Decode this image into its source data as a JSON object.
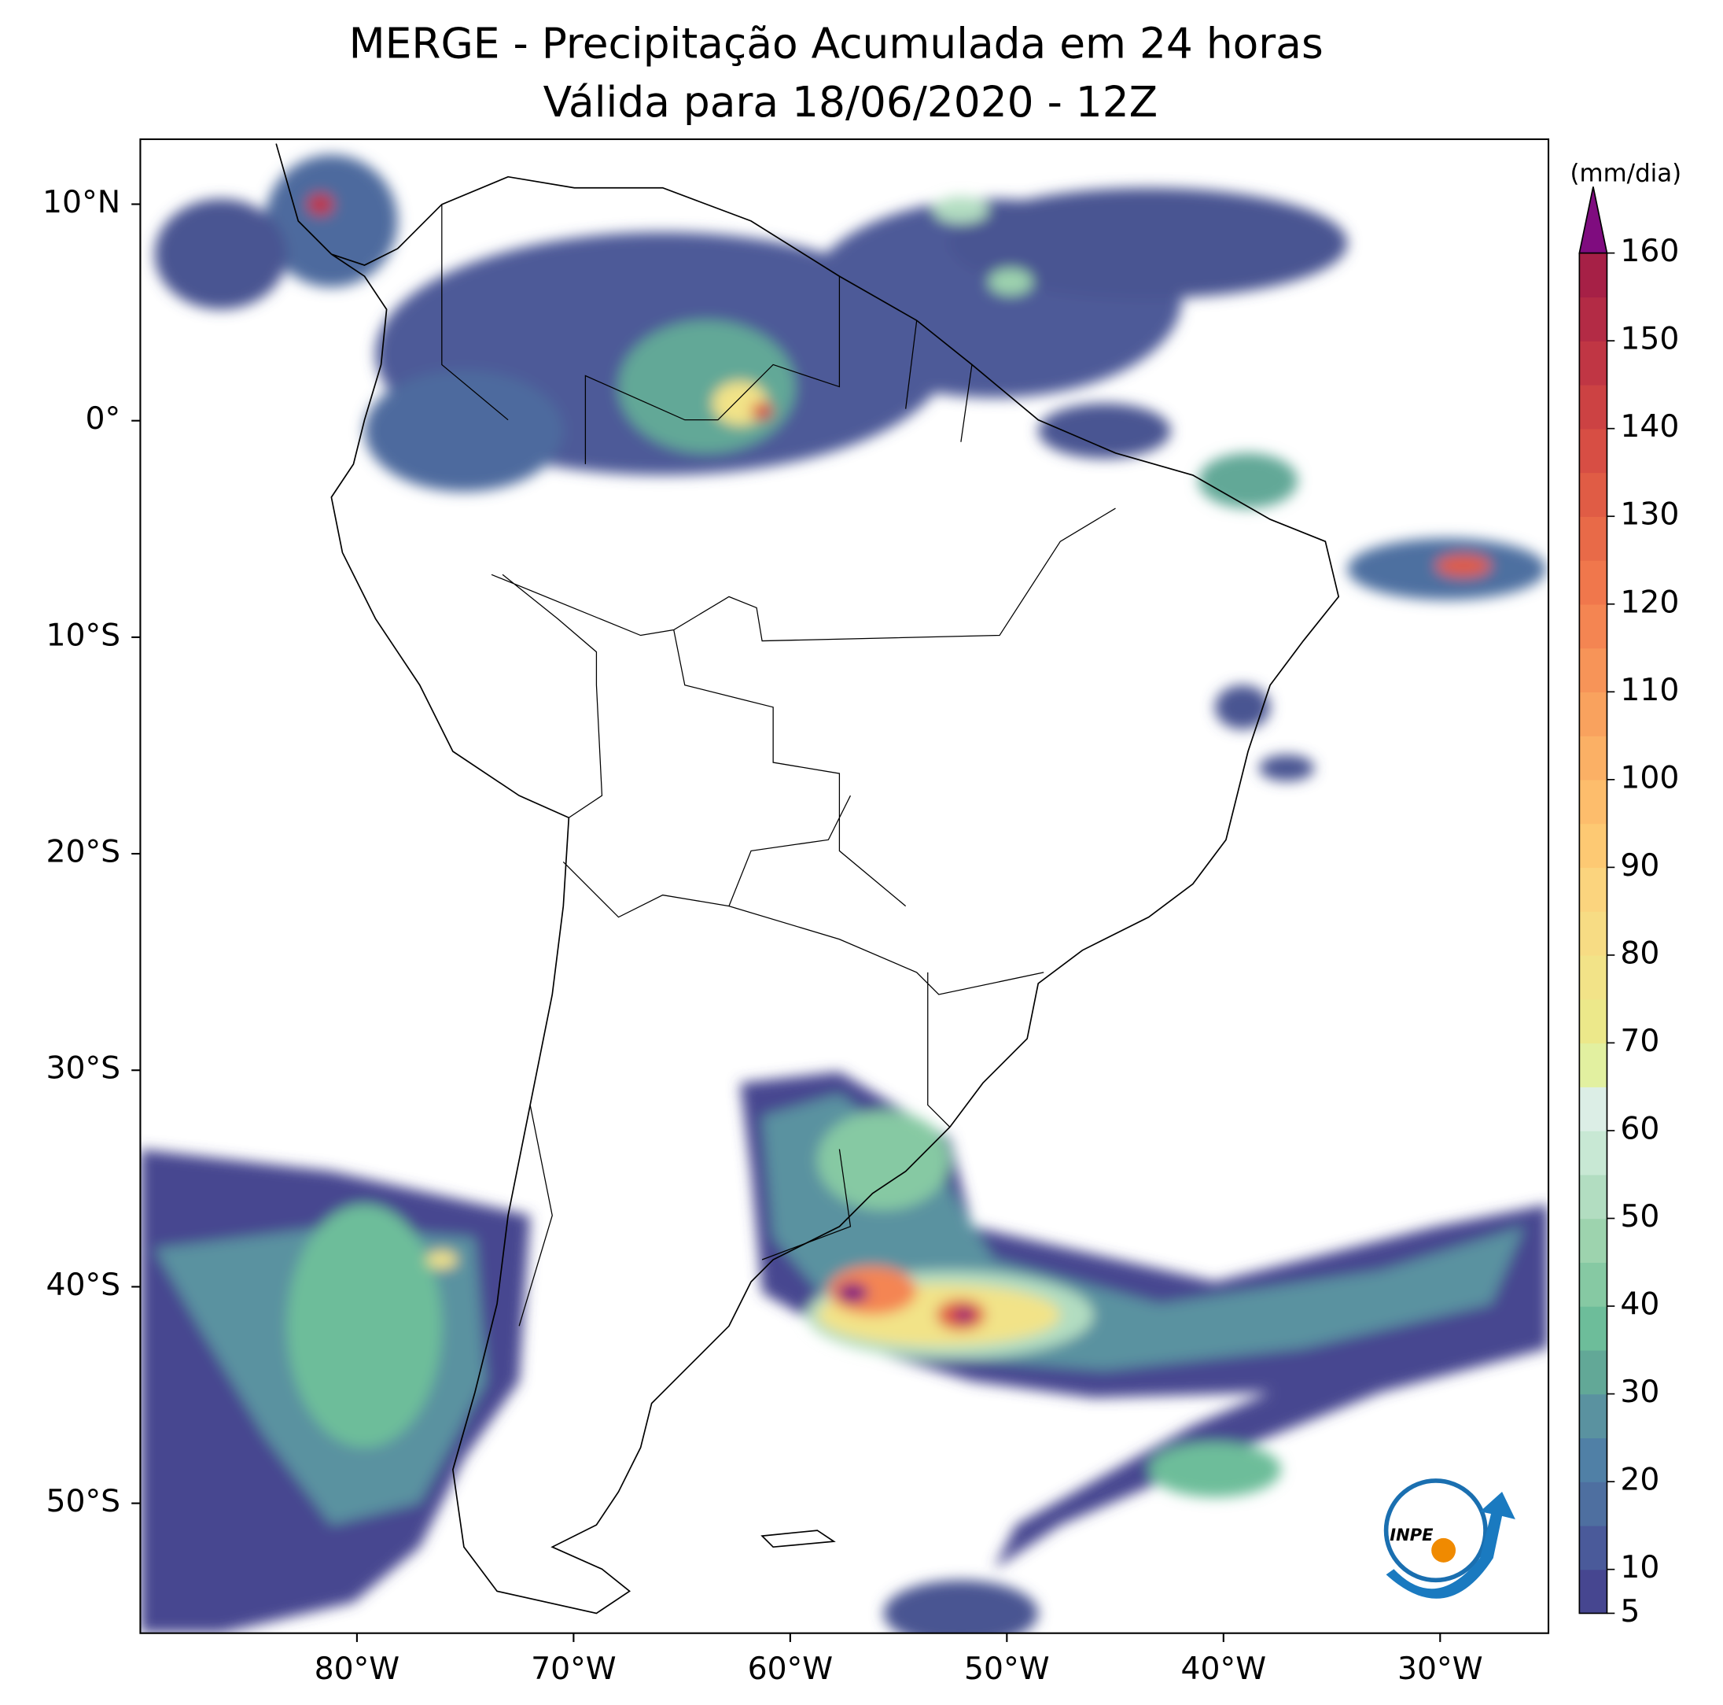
{
  "chart_data": {
    "type": "map",
    "title": "MERGE - Precipitação Acumulada em 24 horas",
    "subtitle": "Válida para 18/06/2020 - 12Z",
    "xlim": [
      -90,
      -25
    ],
    "ylim": [
      -56,
      13
    ],
    "xticks": [
      {
        "value": -80,
        "label": "80°W"
      },
      {
        "value": -70,
        "label": "70°W"
      },
      {
        "value": -60,
        "label": "60°W"
      },
      {
        "value": -50,
        "label": "50°W"
      },
      {
        "value": -40,
        "label": "40°W"
      },
      {
        "value": -30,
        "label": "30°W"
      }
    ],
    "yticks": [
      {
        "value": 10,
        "label": "10°N"
      },
      {
        "value": 0,
        "label": "0°"
      },
      {
        "value": -10,
        "label": "10°S"
      },
      {
        "value": -20,
        "label": "20°S"
      },
      {
        "value": -30,
        "label": "30°S"
      },
      {
        "value": -40,
        "label": "40°S"
      },
      {
        "value": -50,
        "label": "50°S"
      }
    ],
    "colorbar": {
      "label": "(mm/dia)",
      "lim": [
        5,
        160
      ],
      "ticks": [
        5,
        10,
        20,
        30,
        40,
        50,
        60,
        70,
        80,
        90,
        100,
        110,
        120,
        130,
        140,
        150,
        160
      ],
      "colors": [
        "#464690",
        "#4a5a9a",
        "#4e6fa0",
        "#5080a6",
        "#5a92a0",
        "#62a897",
        "#6dbd9a",
        "#86c9a3",
        "#9dd3ae",
        "#b2ddc1",
        "#c8e8d4",
        "#dceee6",
        "#e2f0a0",
        "#ece88a",
        "#f2e388",
        "#f7dc84",
        "#fbd47e",
        "#fdc973",
        "#fdbd6c",
        "#fbb065",
        "#f9a25e",
        "#f79458",
        "#f48552",
        "#f0774c",
        "#e86a48",
        "#e05c45",
        "#d74e44",
        "#cc4243",
        "#c03644",
        "#b32b45",
        "#a62046"
      ],
      "extend_color": "#7f0c7f"
    },
    "logo_text": "INPE"
  }
}
